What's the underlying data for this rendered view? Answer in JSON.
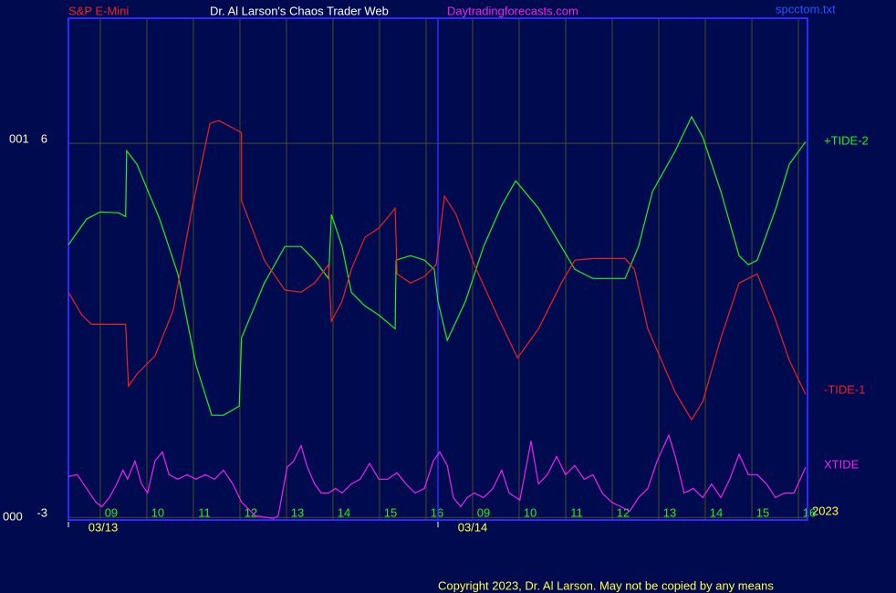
{
  "chart_data": {
    "type": "line",
    "symbol": "S&P E-Mini",
    "title": "Dr. Al Larson's Chaos Trader Web",
    "site": "Daytradingforecasts.com",
    "file": "spcctom.txt",
    "year": "2023",
    "copyright": "Copyright 2023, Dr. Al Larson. May not be copied by any means",
    "left_labels": [
      "001",
      "000"
    ],
    "xlim": [
      0.08,
      15.96
    ],
    "ylim": [
      -3.06,
      9.01
    ],
    "yticks": [
      6,
      -3
    ],
    "xticks": [
      {
        "value": 1,
        "label": "09"
      },
      {
        "value": 2,
        "label": "10"
      },
      {
        "value": 3,
        "label": "11"
      },
      {
        "value": 4,
        "label": "12"
      },
      {
        "value": 5,
        "label": "13"
      },
      {
        "value": 6,
        "label": "14"
      },
      {
        "value": 7,
        "label": "15"
      },
      {
        "value": 8,
        "label": "16"
      },
      {
        "value": 9,
        "label": "09"
      },
      {
        "value": 10,
        "label": "10"
      },
      {
        "value": 11,
        "label": "11"
      },
      {
        "value": 12,
        "label": "12"
      },
      {
        "value": 13,
        "label": "13"
      },
      {
        "value": 14,
        "label": "14"
      },
      {
        "value": 15,
        "label": "15"
      },
      {
        "value": 16,
        "label": "16"
      }
    ],
    "date_ticks": [
      {
        "value": 0.08,
        "label": "03/13"
      },
      {
        "value": 8.02,
        "label": "03/14"
      }
    ],
    "grid": true,
    "series": [
      {
        "name": "+TIDE-2",
        "color": "#22ee22",
        "x": [
          0.08,
          0.47,
          0.76,
          1.16,
          1.31,
          1.33,
          1.55,
          2.04,
          2.43,
          2.82,
          3.16,
          3.41,
          3.75,
          3.8,
          4.29,
          4.73,
          5.08,
          5.37,
          5.67,
          5.73,
          5.96,
          6.16,
          6.45,
          6.75,
          7.1,
          7.12,
          7.43,
          7.73,
          7.94,
          8.02,
          8.22,
          8.61,
          9.0,
          9.39,
          9.69,
          10.18,
          10.67,
          10.96,
          11.35,
          12.04,
          12.33,
          12.63,
          13.12,
          13.47,
          13.71,
          14.1,
          14.49,
          14.69,
          14.88,
          15.27,
          15.57,
          15.92
        ],
        "values": [
          3.56,
          4.18,
          4.35,
          4.33,
          4.24,
          5.82,
          5.5,
          4.18,
          2.86,
          0.67,
          -0.54,
          -0.54,
          -0.32,
          1.32,
          2.64,
          3.52,
          3.52,
          3.19,
          2.75,
          4.29,
          3.52,
          2.42,
          2.09,
          1.87,
          1.54,
          3.19,
          3.3,
          3.19,
          2.97,
          2.2,
          1.26,
          2.2,
          3.52,
          4.51,
          5.1,
          4.44,
          3.52,
          2.97,
          2.75,
          2.75,
          3.52,
          4.84,
          5.82,
          6.64,
          6.15,
          4.84,
          3.3,
          3.08,
          3.19,
          4.4,
          5.5,
          6.04
        ]
      },
      {
        "name": "-TIDE-1",
        "color": "#ee2222",
        "x": [
          0.08,
          0.37,
          0.57,
          0.96,
          1.31,
          1.37,
          1.55,
          1.94,
          2.33,
          2.73,
          3.12,
          3.31,
          3.8,
          3.8,
          4.29,
          4.73,
          5.08,
          5.37,
          5.67,
          5.73,
          5.96,
          6.16,
          6.45,
          6.75,
          7.1,
          7.14,
          7.43,
          7.73,
          7.98,
          8.16,
          8.41,
          8.8,
          9.29,
          9.73,
          10.18,
          10.67,
          10.96,
          11.35,
          12.04,
          12.24,
          12.53,
          13.12,
          13.47,
          13.71,
          14.1,
          14.49,
          14.88,
          15.27,
          15.57,
          15.92
        ],
        "values": [
          2.42,
          1.87,
          1.65,
          1.65,
          1.65,
          0.16,
          0.45,
          0.89,
          1.98,
          4.4,
          6.48,
          6.55,
          6.26,
          4.62,
          3.19,
          2.47,
          2.42,
          2.64,
          3.08,
          1.72,
          2.2,
          2.97,
          3.74,
          3.96,
          4.44,
          2.86,
          2.64,
          2.8,
          3.08,
          4.73,
          4.29,
          3.08,
          1.87,
          0.84,
          1.54,
          2.64,
          3.19,
          3.23,
          3.23,
          2.97,
          1.54,
          0.01,
          -0.65,
          -0.21,
          1.32,
          2.64,
          2.86,
          1.76,
          0.78,
          -0.04
        ]
      },
      {
        "name": "XTIDE",
        "color": "#ee22ee",
        "x": [
          0.08,
          0.27,
          0.47,
          0.67,
          0.8,
          0.96,
          1.12,
          1.25,
          1.35,
          1.51,
          1.65,
          1.78,
          1.94,
          2.1,
          2.24,
          2.43,
          2.63,
          2.82,
          3.02,
          3.22,
          3.41,
          3.61,
          3.8,
          4.1,
          4.49,
          4.59,
          4.78,
          4.92,
          5.08,
          5.2,
          5.37,
          5.51,
          5.67,
          5.82,
          5.96,
          6.16,
          6.35,
          6.55,
          6.75,
          6.94,
          7.14,
          7.33,
          7.53,
          7.73,
          7.92,
          8.06,
          8.22,
          8.35,
          8.51,
          8.65,
          8.8,
          9.0,
          9.2,
          9.39,
          9.55,
          9.78,
          10.02,
          10.18,
          10.37,
          10.57,
          10.76,
          10.96,
          11.16,
          11.35,
          11.55,
          11.75,
          12.14,
          12.33,
          12.53,
          12.73,
          12.98,
          13.12,
          13.31,
          13.51,
          13.71,
          13.9,
          14.1,
          14.29,
          14.49,
          14.69,
          14.88,
          15.08,
          15.27,
          15.47,
          15.67,
          15.92
        ],
        "values": [
          -2.01,
          -1.97,
          -2.3,
          -2.63,
          -2.74,
          -2.52,
          -2.19,
          -1.86,
          -2.08,
          -1.64,
          -2.19,
          -2.41,
          -1.64,
          -1.42,
          -1.97,
          -2.08,
          -1.97,
          -2.08,
          -1.97,
          -2.08,
          -1.86,
          -2.19,
          -2.63,
          -2.96,
          -3.02,
          -2.96,
          -1.79,
          -1.64,
          -1.27,
          -1.75,
          -2.19,
          -2.41,
          -2.41,
          -2.3,
          -2.41,
          -2.19,
          -2.08,
          -1.7,
          -2.08,
          -2.08,
          -1.92,
          -2.19,
          -2.41,
          -2.3,
          -1.64,
          -1.42,
          -1.75,
          -2.52,
          -2.74,
          -2.52,
          -2.41,
          -2.52,
          -2.3,
          -1.86,
          -2.41,
          -2.58,
          -1.16,
          -2.19,
          -1.97,
          -1.53,
          -1.97,
          -1.75,
          -2.08,
          -1.97,
          -2.41,
          -2.63,
          -2.85,
          -2.52,
          -2.3,
          -1.64,
          -1.02,
          -1.53,
          -2.41,
          -2.3,
          -2.52,
          -2.19,
          -2.52,
          -2.08,
          -1.48,
          -1.97,
          -1.97,
          -2.19,
          -2.52,
          -2.41,
          -2.41,
          -1.79
        ]
      }
    ]
  }
}
